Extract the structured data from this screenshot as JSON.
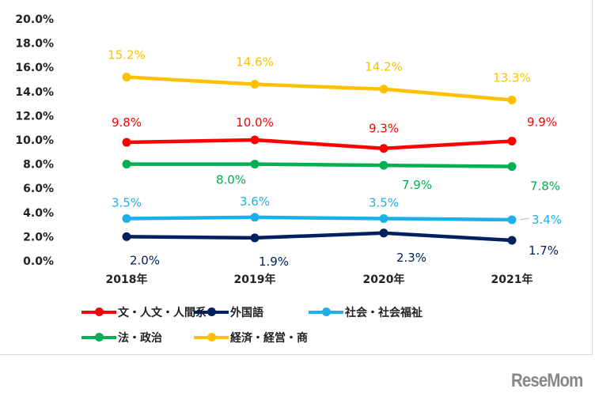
{
  "chart_data": {
    "type": "line",
    "categories": [
      "2018年",
      "2019年",
      "2020年",
      "2021年"
    ],
    "ylim": [
      0,
      20
    ],
    "yticks": [
      "0.0%",
      "2.0%",
      "4.0%",
      "6.0%",
      "8.0%",
      "10.0%",
      "12.0%",
      "14.0%",
      "16.0%",
      "18.0%",
      "20.0%"
    ],
    "grid": false,
    "legend_position": "bottom",
    "series": [
      {
        "name": "文・人文・人間系",
        "color": "#ff0000",
        "values": [
          9.8,
          10.0,
          9.3,
          9.9
        ],
        "labels": [
          "9.8%",
          "10.0%",
          "9.3%",
          "9.9%"
        ]
      },
      {
        "name": "外国語",
        "color": "#002060",
        "values": [
          2.0,
          1.9,
          2.3,
          1.7
        ],
        "labels": [
          "2.0%",
          "1.9%",
          "2.3%",
          "1.7%"
        ]
      },
      {
        "name": "社会・社会福祉",
        "color": "#1cb0e8",
        "values": [
          3.5,
          3.6,
          3.5,
          3.4
        ],
        "labels": [
          "3.5%",
          "3.6%",
          "3.5%",
          "3.4%"
        ]
      },
      {
        "name": "法・政治",
        "color": "#00b050",
        "values": [
          8.0,
          8.0,
          7.9,
          7.8
        ],
        "labels": [
          null,
          "8.0%",
          "7.9%",
          "7.8%"
        ]
      },
      {
        "name": "経済・経営・商",
        "color": "#ffc000",
        "values": [
          15.2,
          14.6,
          14.2,
          13.3
        ],
        "labels": [
          "15.2%",
          "14.6%",
          "14.2%",
          "13.3%"
        ]
      }
    ]
  },
  "logo": "ReseMom"
}
